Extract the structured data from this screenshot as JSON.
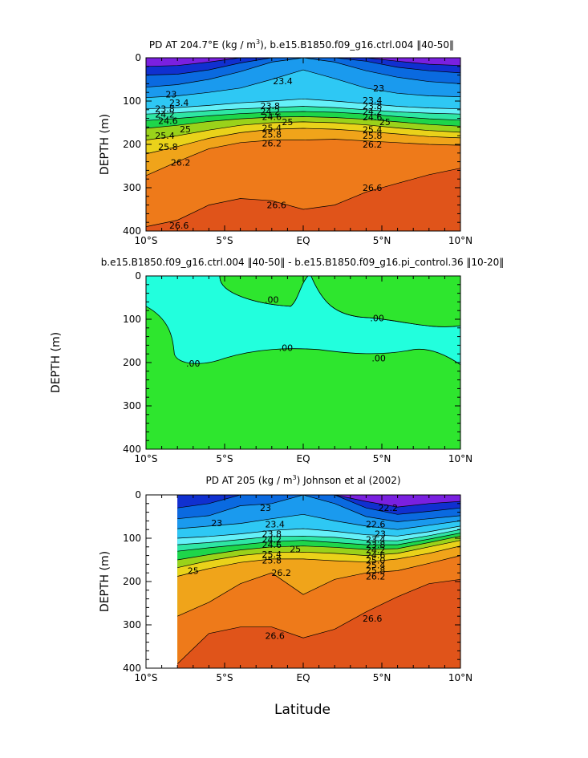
{
  "figure": {
    "xlabel": "Latitude"
  },
  "chart_data": [
    {
      "type": "heatmap",
      "title_pre": "PD AT 204.7°E (kg / m",
      "title_sup": "3",
      "title_post": "), b.e15.B1850.f09_g16.ctrl.004 ‖40-50‖",
      "xlabel": "",
      "ylabel": "DEPTH (m)",
      "xlim": [
        -10,
        10
      ],
      "ylim": [
        0,
        400
      ],
      "x_ticks": [
        -10,
        -5,
        0,
        5,
        10
      ],
      "x_ticklabels": [
        "10°S",
        "5°S",
        "EQ",
        "5°N",
        "10°N"
      ],
      "y_ticks": [
        0,
        100,
        200,
        300,
        400
      ],
      "y_ticklabels": [
        "0",
        "100",
        "200",
        "300",
        "400"
      ],
      "show_x_ticklabels": true,
      "data_x_range": [
        -10,
        10
      ],
      "contours": [
        {
          "level": 22.2,
          "x": [
            -10,
            -8,
            -6,
            -4,
            -2,
            0,
            2,
            4,
            6,
            8,
            10
          ],
          "y": [
            20,
            18,
            10,
            0,
            0,
            0,
            0,
            0,
            8,
            15,
            18
          ]
        },
        {
          "level": 22.6,
          "x": [
            -10,
            -8,
            -6,
            -4,
            -2,
            0,
            2,
            4,
            6,
            8,
            10
          ],
          "y": [
            40,
            38,
            28,
            12,
            0,
            0,
            0,
            8,
            22,
            30,
            35
          ]
        },
        {
          "level": 23.0,
          "x": [
            -10,
            -8,
            -6,
            -4,
            -2,
            0,
            2,
            4,
            6,
            8,
            10
          ],
          "y": [
            68,
            62,
            50,
            32,
            10,
            0,
            10,
            30,
            45,
            55,
            60
          ]
        },
        {
          "level": 23.4,
          "x": [
            -10,
            -8,
            -6,
            -4,
            -2,
            0,
            2,
            4,
            6,
            8,
            10
          ],
          "y": [
            92,
            88,
            80,
            70,
            50,
            28,
            48,
            70,
            82,
            88,
            90
          ]
        },
        {
          "level": 23.8,
          "x": [
            -10,
            -8,
            -6,
            -4,
            -2,
            0,
            2,
            4,
            6,
            8,
            10
          ],
          "y": [
            118,
            115,
            110,
            104,
            100,
            95,
            100,
            106,
            112,
            116,
            118
          ]
        },
        {
          "level": 24.2,
          "x": [
            -10,
            -8,
            -6,
            -4,
            -2,
            0,
            2,
            4,
            6,
            8,
            10
          ],
          "y": [
            130,
            127,
            122,
            118,
            115,
            112,
            115,
            120,
            125,
            128,
            130
          ]
        },
        {
          "level": 24.6,
          "x": [
            -10,
            -8,
            -6,
            -4,
            -2,
            0,
            2,
            4,
            6,
            8,
            10
          ],
          "y": [
            145,
            140,
            134,
            129,
            126,
            124,
            126,
            130,
            136,
            141,
            144
          ]
        },
        {
          "level": 25.0,
          "x": [
            -10,
            -8,
            -6,
            -4,
            -2,
            0,
            2,
            4,
            6,
            8,
            10
          ],
          "y": [
            163,
            156,
            147,
            141,
            137,
            136,
            138,
            142,
            148,
            154,
            158
          ]
        },
        {
          "level": 25.4,
          "x": [
            -10,
            -8,
            -6,
            -4,
            -2,
            0,
            2,
            4,
            6,
            8,
            10
          ],
          "y": [
            190,
            180,
            167,
            156,
            150,
            148,
            150,
            155,
            162,
            168,
            172
          ]
        },
        {
          "level": 25.8,
          "x": [
            -10,
            -8,
            -6,
            -4,
            -2,
            0,
            2,
            4,
            6,
            8,
            10
          ],
          "y": [
            222,
            205,
            186,
            173,
            165,
            163,
            165,
            170,
            176,
            182,
            185
          ]
        },
        {
          "level": 26.2,
          "x": [
            -10,
            -8,
            -6,
            -4,
            -2,
            0,
            2,
            4,
            6,
            8,
            10
          ],
          "y": [
            272,
            240,
            210,
            196,
            190,
            190,
            188,
            192,
            196,
            200,
            202
          ]
        },
        {
          "level": 26.6,
          "x": [
            -10,
            -8,
            -6,
            -4,
            -2,
            0,
            2,
            4,
            6,
            8,
            10
          ],
          "y": [
            390,
            375,
            340,
            325,
            330,
            350,
            340,
            310,
            290,
            270,
            255
          ]
        }
      ],
      "labels": [
        {
          "text": "23",
          "x": -8.4,
          "y": 84
        },
        {
          "text": "23.4",
          "x": -7.9,
          "y": 104
        },
        {
          "text": "23.8",
          "x": -8.8,
          "y": 118
        },
        {
          "text": "24.2",
          "x": -8.8,
          "y": 131
        },
        {
          "text": "24.6",
          "x": -8.6,
          "y": 145
        },
        {
          "text": "25",
          "x": -7.5,
          "y": 165
        },
        {
          "text": "25.4",
          "x": -8.8,
          "y": 180
        },
        {
          "text": "25.8",
          "x": -8.6,
          "y": 206
        },
        {
          "text": "26.2",
          "x": -7.8,
          "y": 242
        },
        {
          "text": "26.6",
          "x": -7.9,
          "y": 387
        },
        {
          "text": "23.4",
          "x": -1.3,
          "y": 54
        },
        {
          "text": "23.8",
          "x": -2.1,
          "y": 111
        },
        {
          "text": "24.2",
          "x": -2.1,
          "y": 124
        },
        {
          "text": "24.6",
          "x": -2.0,
          "y": 136
        },
        {
          "text": "25",
          "x": -1.0,
          "y": 148
        },
        {
          "text": "25.4",
          "x": -2.0,
          "y": 162
        },
        {
          "text": "25.8",
          "x": -2.0,
          "y": 177
        },
        {
          "text": "26.2",
          "x": -2.0,
          "y": 197
        },
        {
          "text": "26.6",
          "x": -1.7,
          "y": 340
        },
        {
          "text": "23",
          "x": 4.8,
          "y": 70
        },
        {
          "text": "23.4",
          "x": 4.4,
          "y": 98
        },
        {
          "text": "23.8",
          "x": 4.4,
          "y": 111
        },
        {
          "text": "24.2",
          "x": 4.4,
          "y": 124
        },
        {
          "text": "24.6",
          "x": 4.4,
          "y": 137
        },
        {
          "text": "25",
          "x": 5.2,
          "y": 148
        },
        {
          "text": "25.4",
          "x": 4.4,
          "y": 166
        },
        {
          "text": "25.8",
          "x": 4.4,
          "y": 180
        },
        {
          "text": "26.2",
          "x": 4.4,
          "y": 200
        },
        {
          "text": "26.6",
          "x": 4.4,
          "y": 300
        }
      ]
    },
    {
      "type": "heatmap",
      "title_pre": "b.e15.B1850.f09_g16.ctrl.004 ‖40-50‖ - b.e15.B1850.f09_g16.pi_control.36 ‖10-20‖",
      "title_sup": "",
      "title_post": "",
      "xlabel": "",
      "ylabel": "DEPTH (m)",
      "xlim": [
        -10,
        10
      ],
      "ylim": [
        0,
        400
      ],
      "x_ticks": [
        -10,
        -5,
        0,
        5,
        10
      ],
      "x_ticklabels": [
        "10°S",
        "5°S",
        "EQ",
        "5°N",
        "10°N"
      ],
      "y_ticks": [
        0,
        100,
        200,
        300,
        400
      ],
      "y_ticklabels": [
        "0",
        "100",
        "200",
        "300",
        "400"
      ],
      "show_x_ticklabels": true,
      "data_x_range": [
        -10,
        10
      ],
      "difference_zero_level": "0.00",
      "labels": [
        {
          "text": ".00",
          "x": -2.0,
          "y": 55
        },
        {
          "text": ".00",
          "x": 4.7,
          "y": 97
        },
        {
          "text": ".00",
          "x": -1.1,
          "y": 166
        },
        {
          "text": ".00",
          "x": -7.0,
          "y": 202
        },
        {
          "text": ".00",
          "x": 4.8,
          "y": 190
        }
      ]
    },
    {
      "type": "heatmap",
      "title_pre": "PD AT 205 (kg / m",
      "title_sup": "3",
      "title_post": ") Johnson et al (2002)",
      "xlabel": "Latitude",
      "ylabel": "DEPTH (m)",
      "xlim": [
        -10,
        10
      ],
      "ylim": [
        0,
        400
      ],
      "x_ticks": [
        -10,
        -5,
        0,
        5,
        10
      ],
      "x_ticklabels": [
        "10°S",
        "5°S",
        "EQ",
        "5°N",
        "10°N"
      ],
      "y_ticks": [
        0,
        100,
        200,
        300,
        400
      ],
      "y_ticklabels": [
        "0",
        "100",
        "200",
        "300",
        "400"
      ],
      "show_x_ticklabels": true,
      "data_x_range": [
        -8,
        10
      ],
      "contours": [
        {
          "level": 22.2,
          "x": [
            -8,
            -6,
            -4,
            -2,
            0,
            2,
            4,
            6,
            8,
            10
          ],
          "y": [
            0,
            0,
            0,
            0,
            0,
            0,
            15,
            28,
            20,
            15
          ]
        },
        {
          "level": 22.6,
          "x": [
            -8,
            -6,
            -4,
            -2,
            0,
            2,
            4,
            6,
            8,
            10
          ],
          "y": [
            30,
            20,
            0,
            0,
            0,
            0,
            30,
            45,
            38,
            30
          ]
        },
        {
          "level": 23.0,
          "x": [
            -8,
            -6,
            -4,
            -2,
            0,
            2,
            4,
            6,
            8,
            10
          ],
          "y": [
            55,
            48,
            25,
            20,
            0,
            20,
            50,
            62,
            55,
            48
          ]
        },
        {
          "level": 23.4,
          "x": [
            -8,
            -6,
            -4,
            -2,
            0,
            2,
            4,
            6,
            8,
            10
          ],
          "y": [
            78,
            72,
            66,
            55,
            45,
            60,
            72,
            80,
            70,
            60
          ]
        },
        {
          "level": 23.8,
          "x": [
            -8,
            -6,
            -4,
            -2,
            0,
            2,
            4,
            6,
            8,
            10
          ],
          "y": [
            100,
            96,
            90,
            82,
            78,
            84,
            92,
            95,
            85,
            72
          ]
        },
        {
          "level": 24.2,
          "x": [
            -8,
            -6,
            -4,
            -2,
            0,
            2,
            4,
            6,
            8,
            10
          ],
          "y": [
            115,
            110,
            103,
            96,
            95,
            98,
            105,
            106,
            94,
            80
          ]
        },
        {
          "level": 24.6,
          "x": [
            -8,
            -6,
            -4,
            -2,
            0,
            2,
            4,
            6,
            8,
            10
          ],
          "y": [
            130,
            122,
            115,
            108,
            105,
            110,
            115,
            115,
            102,
            88
          ]
        },
        {
          "level": 25.0,
          "x": [
            -8,
            -6,
            -4,
            -2,
            0,
            2,
            4,
            6,
            8,
            10
          ],
          "y": [
            150,
            138,
            127,
            120,
            118,
            121,
            126,
            124,
            110,
            95
          ]
        },
        {
          "level": 25.4,
          "x": [
            -8,
            -6,
            -4,
            -2,
            0,
            2,
            4,
            6,
            8,
            10
          ],
          "y": [
            168,
            152,
            140,
            133,
            132,
            135,
            140,
            135,
            120,
            105
          ]
        },
        {
          "level": 25.8,
          "x": [
            -8,
            -6,
            -4,
            -2,
            0,
            2,
            4,
            6,
            8,
            10
          ],
          "y": [
            188,
            170,
            156,
            148,
            148,
            152,
            155,
            148,
            135,
            118
          ]
        },
        {
          "level": 26.2,
          "x": [
            -8,
            -6,
            -4,
            -2,
            0,
            2,
            4,
            6,
            8,
            10
          ],
          "y": [
            280,
            248,
            205,
            180,
            230,
            195,
            180,
            175,
            158,
            140
          ]
        },
        {
          "level": 26.6,
          "x": [
            -8,
            -6,
            -4,
            -2,
            0,
            2,
            4,
            6,
            8,
            10
          ],
          "y": [
            390,
            320,
            305,
            305,
            330,
            310,
            270,
            235,
            205,
            195
          ]
        }
      ],
      "labels": [
        {
          "text": "23",
          "x": -2.4,
          "y": 30
        },
        {
          "text": "23",
          "x": -5.5,
          "y": 65
        },
        {
          "text": "23.4",
          "x": -1.8,
          "y": 68
        },
        {
          "text": "23.8",
          "x": -2.0,
          "y": 90
        },
        {
          "text": "24.2",
          "x": -2.0,
          "y": 103
        },
        {
          "text": "24.6",
          "x": -2.0,
          "y": 115
        },
        {
          "text": "25",
          "x": -0.5,
          "y": 125
        },
        {
          "text": "25.4",
          "x": -2.0,
          "y": 137
        },
        {
          "text": "25.8",
          "x": -2.0,
          "y": 151
        },
        {
          "text": "26.2",
          "x": -1.4,
          "y": 180
        },
        {
          "text": "25",
          "x": -7.0,
          "y": 175
        },
        {
          "text": "26.6",
          "x": -1.8,
          "y": 325
        },
        {
          "text": "22.2",
          "x": 5.4,
          "y": 30
        },
        {
          "text": "22.6",
          "x": 4.6,
          "y": 68
        },
        {
          "text": "23",
          "x": 4.9,
          "y": 90
        },
        {
          "text": "23.4",
          "x": 4.6,
          "y": 103
        },
        {
          "text": "23.8",
          "x": 4.6,
          "y": 115
        },
        {
          "text": "24.2",
          "x": 4.6,
          "y": 127
        },
        {
          "text": "24.6",
          "x": 4.6,
          "y": 139
        },
        {
          "text": "25.0",
          "x": 4.6,
          "y": 151
        },
        {
          "text": "25.4",
          "x": 4.6,
          "y": 162
        },
        {
          "text": "25.8",
          "x": 4.6,
          "y": 174
        },
        {
          "text": "26.2",
          "x": 4.6,
          "y": 188
        },
        {
          "text": "26.6",
          "x": 4.4,
          "y": 285
        }
      ]
    }
  ]
}
